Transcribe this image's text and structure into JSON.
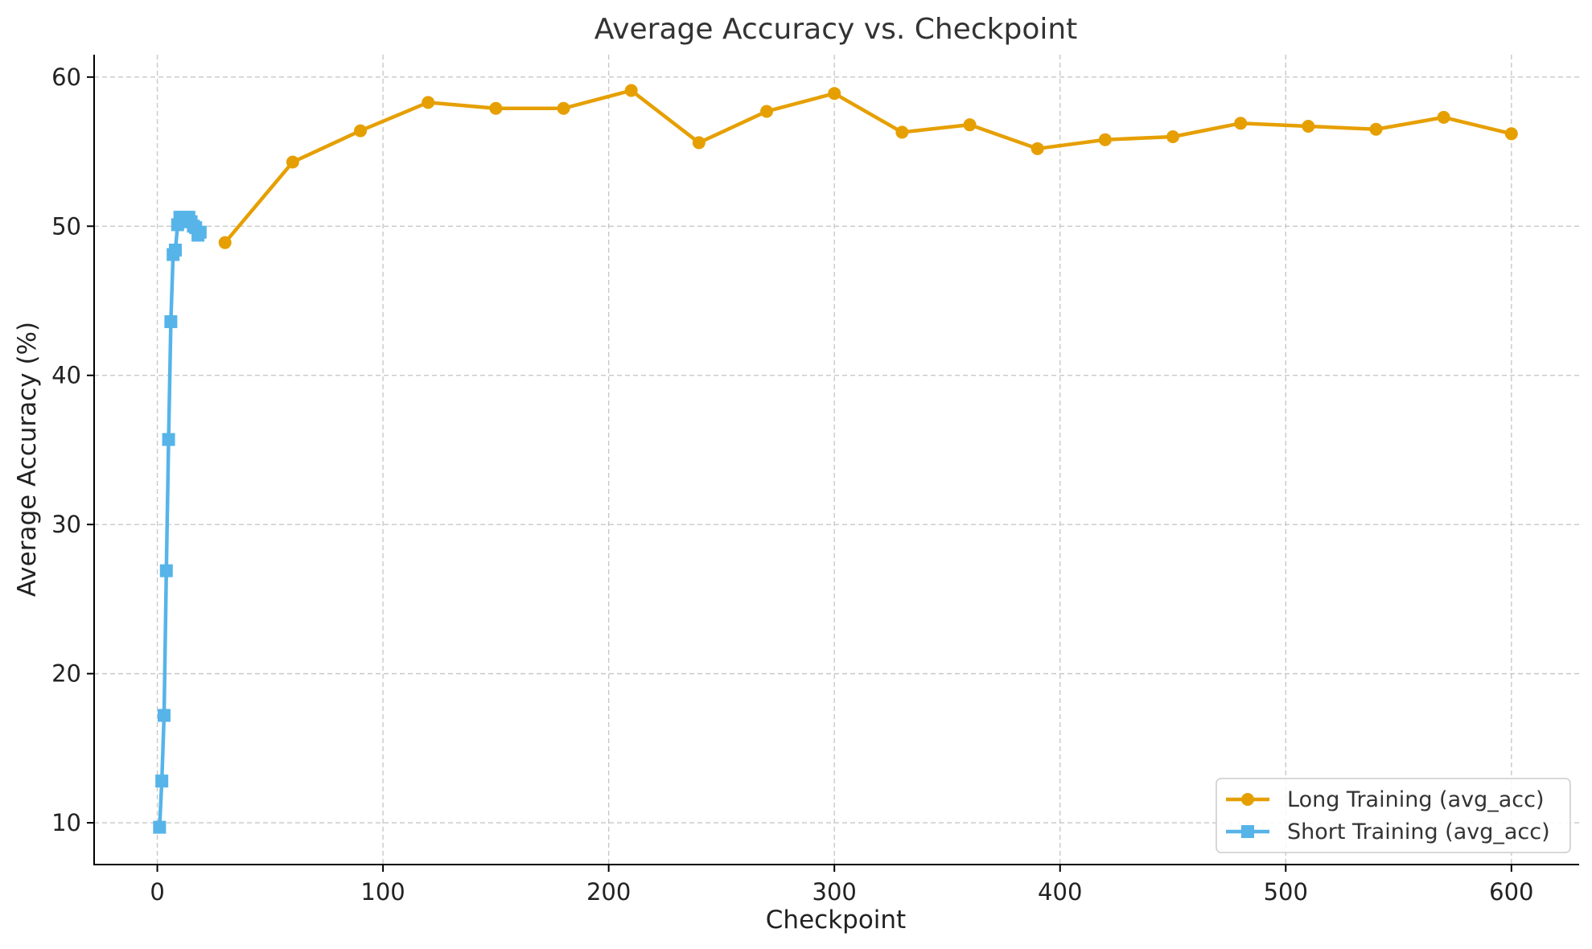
{
  "chart_data": {
    "type": "line",
    "title": "Average Accuracy vs. Checkpoint",
    "xlabel": "Checkpoint",
    "ylabel": "Average Accuracy (%)",
    "xlim": [
      -28,
      630
    ],
    "ylim": [
      7.2,
      61.5
    ],
    "xticks": [
      0,
      100,
      200,
      300,
      400,
      500,
      600
    ],
    "yticks": [
      10,
      20,
      30,
      40,
      50,
      60
    ],
    "grid": true,
    "legend_position": "bottom-right",
    "series": [
      {
        "name": "Long Training (avg_acc)",
        "color": "#E69F00",
        "marker": "circle",
        "x": [
          30,
          60,
          90,
          120,
          150,
          180,
          210,
          240,
          270,
          300,
          330,
          360,
          390,
          420,
          450,
          480,
          510,
          540,
          570,
          600
        ],
        "y": [
          48.9,
          54.3,
          56.4,
          58.3,
          57.9,
          57.9,
          59.1,
          55.6,
          57.7,
          58.9,
          56.3,
          56.8,
          55.2,
          55.8,
          56.0,
          56.9,
          56.7,
          56.5,
          57.3,
          56.2
        ]
      },
      {
        "name": "Short Training (avg_acc)",
        "color": "#56B4E9",
        "marker": "square",
        "x": [
          1,
          2,
          3,
          4,
          5,
          6,
          7,
          8,
          9,
          10,
          11,
          12,
          13,
          14,
          15,
          16,
          17,
          18,
          19
        ],
        "y": [
          9.7,
          12.8,
          17.2,
          26.9,
          35.7,
          43.6,
          48.1,
          48.4,
          50.1,
          50.6,
          50.6,
          50.3,
          50.6,
          50.6,
          50.3,
          50.0,
          49.9,
          49.4,
          49.6
        ]
      }
    ]
  }
}
